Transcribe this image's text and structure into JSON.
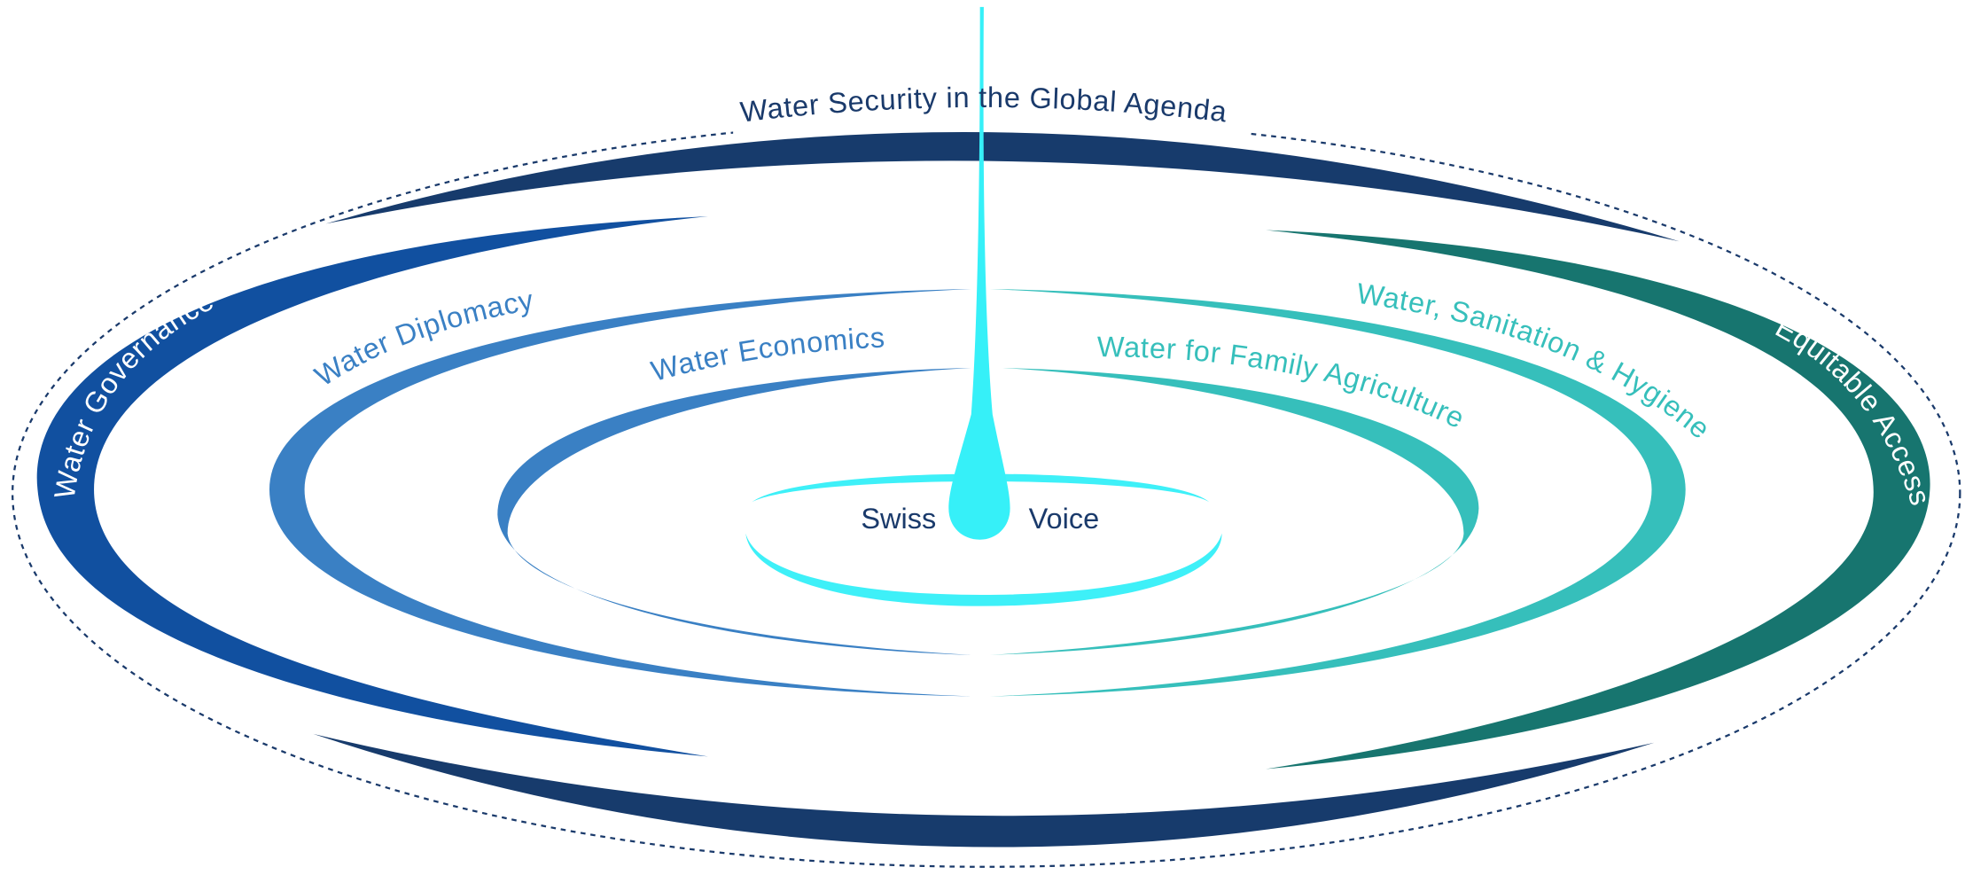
{
  "title": "Water Security in the Global Agenda",
  "nodes": [
    {
      "label": "Water Governance"
    },
    {
      "label": "Water Diplomacy"
    },
    {
      "label": "Water Economics"
    },
    {
      "label": "Water for Family Agriculture"
    },
    {
      "label": "Water, Sanitation & Hygiene"
    },
    {
      "label": "Equitable Access"
    }
  ],
  "center": {
    "left": "Swiss",
    "right": "Voice"
  }
}
